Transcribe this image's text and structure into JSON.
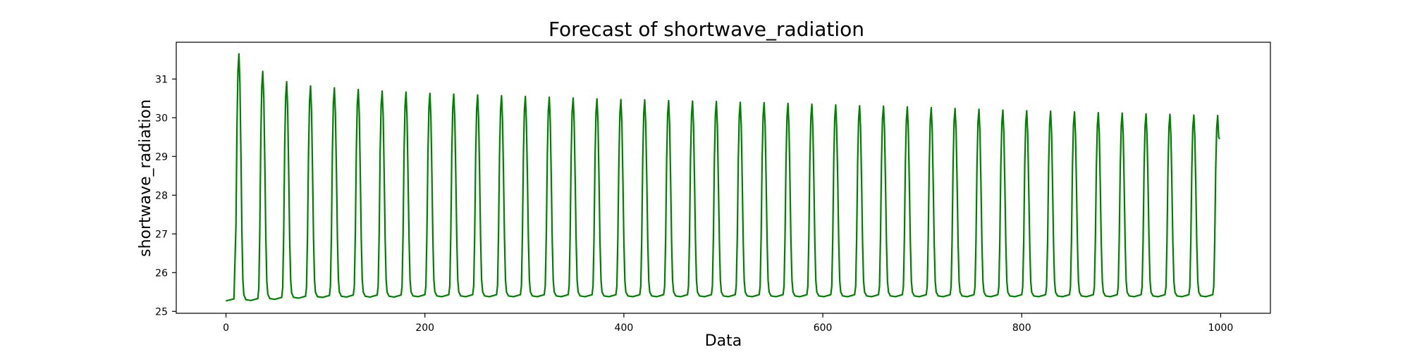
{
  "chart_data": {
    "type": "line",
    "title": "Forecast of shortwave_radiation",
    "xlabel": "Data",
    "ylabel": "shortwave_radiation",
    "xlim": [
      -50,
      1050
    ],
    "ylim": [
      24.95,
      31.95
    ],
    "xticks": [
      0,
      200,
      400,
      600,
      800,
      1000
    ],
    "yticks": [
      25,
      26,
      27,
      28,
      29,
      30,
      31
    ],
    "grid": false,
    "legend": "none",
    "line_color": "#008000",
    "series": [
      {
        "period": 24,
        "first_peak_x": 13,
        "peaks": [
          31.65,
          31.2,
          30.93,
          30.82,
          30.77,
          30.73,
          30.69,
          30.66,
          30.63,
          30.61,
          30.59,
          30.57,
          30.55,
          30.53,
          30.51,
          30.49,
          30.47,
          30.46,
          30.44,
          30.43,
          30.42,
          30.4,
          30.39,
          30.37,
          30.35,
          30.33,
          30.31,
          30.3,
          30.28,
          30.26,
          30.24,
          30.22,
          30.2,
          30.18,
          30.17,
          30.15,
          30.13,
          30.12,
          30.1,
          30.09,
          30.07,
          30.06
        ],
        "troughs": [
          25.3,
          25.33,
          25.36,
          25.38,
          25.39,
          25.39,
          25.39,
          25.4,
          25.4,
          25.4,
          25.4,
          25.4,
          25.4,
          25.4,
          25.4,
          25.4,
          25.4,
          25.4,
          25.4,
          25.4,
          25.4,
          25.4,
          25.4,
          25.4,
          25.4,
          25.4,
          25.4,
          25.4,
          25.4,
          25.4,
          25.4,
          25.4,
          25.4,
          25.4,
          25.4,
          25.4,
          25.4,
          25.4,
          25.4,
          25.4,
          25.4,
          25.4
        ],
        "start": {
          "x": 0,
          "y": 25.27
        },
        "end": {
          "x": 999,
          "y": 29.45
        }
      }
    ]
  }
}
